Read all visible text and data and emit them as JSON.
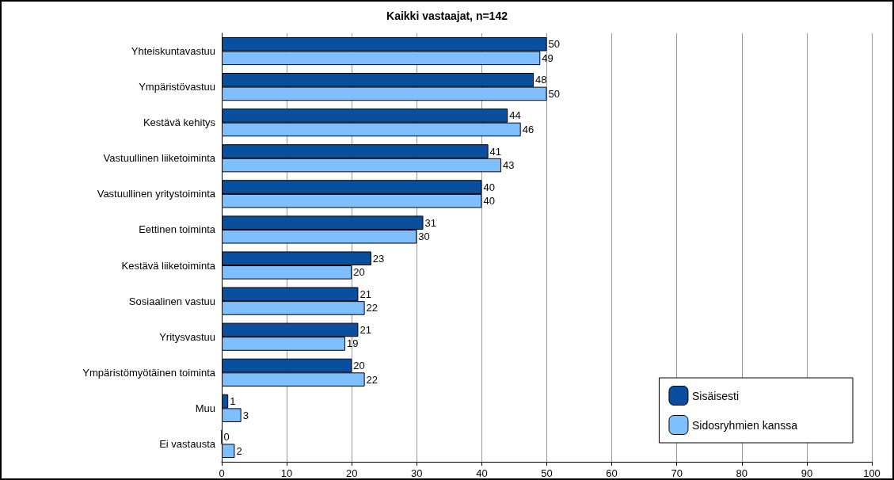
{
  "chart_data": {
    "type": "bar",
    "orientation": "horizontal",
    "title": "Kaikki vastaajat, n=142",
    "categories": [
      "Yhteiskuntavastuu",
      "Ympäristövastuu",
      "Kestävä kehitys",
      "Vastuullinen liiketoiminta",
      "Vastuullinen yritystoiminta",
      "Eettinen toiminta",
      "Kestävä liiketoiminta",
      "Sosiaalinen vastuu",
      "Yritysvastuu",
      "Ympäristömyötäinen toiminta",
      "Muu",
      "Ei vastausta"
    ],
    "series": [
      {
        "name": "Sisäisesti",
        "color": "#0a4f9e",
        "values": [
          50,
          48,
          44,
          41,
          40,
          31,
          23,
          21,
          21,
          20,
          1,
          0
        ]
      },
      {
        "name": "Sidosryhmien kanssa",
        "color": "#7fbfff",
        "values": [
          49,
          50,
          46,
          43,
          40,
          30,
          20,
          22,
          19,
          22,
          3,
          2
        ]
      }
    ],
    "xlim": [
      0,
      100
    ],
    "xticks": [
      0,
      10,
      20,
      30,
      40,
      50,
      60,
      70,
      80,
      90,
      100
    ],
    "grid": "x",
    "legend": "bottom right",
    "data_labels": true
  }
}
